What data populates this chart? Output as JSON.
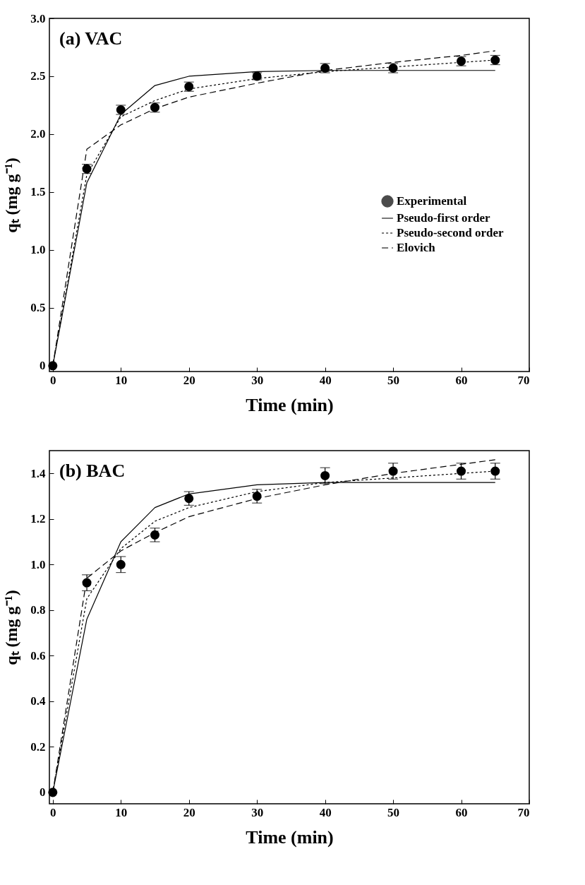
{
  "chart_data": [
    {
      "type": "line",
      "title": "(a) VAC",
      "xlabel": "Time (min)",
      "ylabel": "qₜ (mg g⁻¹)",
      "x": [
        0,
        5,
        10,
        15,
        20,
        30,
        40,
        50,
        60,
        65
      ],
      "xlim": [
        -0.5,
        70
      ],
      "xticks": [
        0,
        10,
        20,
        30,
        40,
        50,
        60,
        70
      ],
      "ylim": [
        -0.05,
        3.0
      ],
      "yticks": [
        {
          "value": 0,
          "label": "0"
        },
        {
          "value": 0.5,
          "label": "0.5"
        },
        {
          "value": 1,
          "label": "1.0"
        },
        {
          "value": 1.5,
          "label": "1.5"
        },
        {
          "value": 2,
          "label": "2.0"
        },
        {
          "value": 2.5,
          "label": "2.5"
        },
        {
          "value": 3,
          "label": "3.0"
        }
      ],
      "grid": false,
      "legend": "right",
      "series": [
        {
          "name": "Experimental",
          "type": "scatter",
          "marker": "circle",
          "color": "#000000",
          "values": [
            0,
            1.7,
            2.21,
            2.23,
            2.41,
            2.5,
            2.57,
            2.57,
            2.63,
            2.64
          ],
          "errors": [
            null,
            0.04,
            0.04,
            0.04,
            0.04,
            0.03,
            0.04,
            0.04,
            0.04,
            0.04
          ]
        },
        {
          "name": "Pseudo-first order",
          "type": "line",
          "line_style": "solid",
          "color": "#000000",
          "values": [
            0,
            1.58,
            2.17,
            2.42,
            2.5,
            2.54,
            2.55,
            2.55,
            2.55,
            2.55
          ]
        },
        {
          "name": "Pseudo-second order",
          "type": "line",
          "line_style": "dotted",
          "color": "#000000",
          "values": [
            0,
            1.65,
            2.15,
            2.29,
            2.39,
            2.48,
            2.54,
            2.58,
            2.62,
            2.64
          ]
        },
        {
          "name": "Elovich",
          "type": "line",
          "line_style": "dashed",
          "color": "#000000",
          "values": [
            0,
            1.87,
            2.08,
            2.22,
            2.32,
            2.44,
            2.55,
            2.62,
            2.68,
            2.72
          ]
        }
      ]
    },
    {
      "type": "line",
      "title": "(b) BAC",
      "xlabel": "Time (min)",
      "ylabel": "qₜ (mg g⁻¹)",
      "x": [
        0,
        5,
        10,
        15,
        20,
        30,
        40,
        50,
        60,
        65
      ],
      "xlim": [
        -0.5,
        70
      ],
      "xticks": [
        0,
        10,
        20,
        30,
        40,
        50,
        60,
        70
      ],
      "ylim": [
        -0.05,
        1.5
      ],
      "yticks": [
        {
          "value": 0,
          "label": "0"
        },
        {
          "value": 0.2,
          "label": "0.2"
        },
        {
          "value": 0.4,
          "label": "0.4"
        },
        {
          "value": 0.6,
          "label": "0.6"
        },
        {
          "value": 0.8,
          "label": "0.8"
        },
        {
          "value": 1,
          "label": "1.0"
        },
        {
          "value": 1.2,
          "label": "1.2"
        },
        {
          "value": 1.4,
          "label": "1.4"
        }
      ],
      "grid": false,
      "legend": "right",
      "series": [
        {
          "name": "Experimental",
          "type": "scatter",
          "marker": "circle",
          "color": "#000000",
          "values": [
            0,
            0.92,
            1.0,
            1.13,
            1.29,
            1.3,
            1.39,
            1.41,
            1.41,
            1.41
          ],
          "errors": [
            null,
            0.035,
            0.035,
            0.03,
            0.03,
            0.03,
            0.035,
            0.035,
            0.035,
            0.035
          ]
        },
        {
          "name": "Pseudo-first order",
          "type": "line",
          "line_style": "solid",
          "color": "#000000",
          "values": [
            0,
            0.76,
            1.1,
            1.25,
            1.31,
            1.35,
            1.36,
            1.36,
            1.36,
            1.36
          ]
        },
        {
          "name": "Pseudo-second order",
          "type": "line",
          "line_style": "dotted",
          "color": "#000000",
          "values": [
            0,
            0.85,
            1.07,
            1.19,
            1.25,
            1.32,
            1.36,
            1.38,
            1.4,
            1.41
          ]
        },
        {
          "name": "Elovich",
          "type": "line",
          "line_style": "dashed",
          "color": "#000000",
          "values": [
            0,
            0.94,
            1.06,
            1.14,
            1.21,
            1.29,
            1.35,
            1.4,
            1.44,
            1.46
          ]
        }
      ]
    }
  ]
}
